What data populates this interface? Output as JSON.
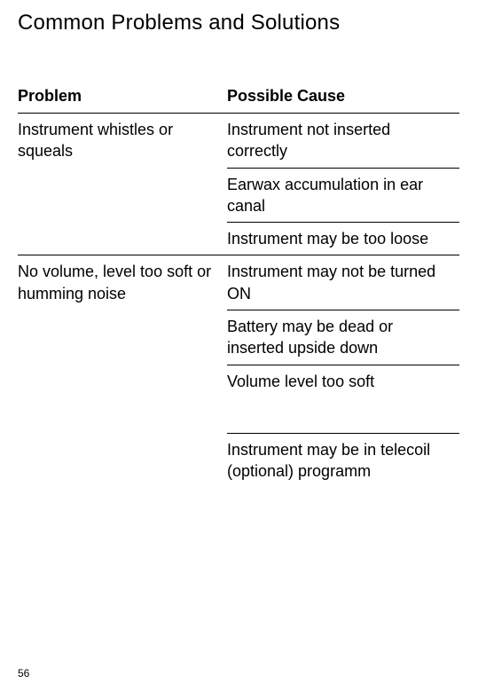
{
  "title": "Common Problems and Solutions",
  "headers": {
    "problem": "Problem",
    "cause": "Possible Cause"
  },
  "rows": [
    {
      "problem": "Instrument whistles or squeals",
      "causes": [
        "Instrument not inserted correctly",
        "Earwax accumulation in ear canal",
        "Instrument may be too loose"
      ]
    },
    {
      "problem": "No volume, level too soft or humming noise",
      "causes": [
        "Instrument may not be turned ON",
        "Battery may be dead or inserted upside down",
        "Volume level too soft",
        "Instrument may be in telecoil (optional) programm"
      ],
      "gap_after_index": 2
    }
  ],
  "page_number": "56",
  "colors": {
    "text": "#000000",
    "background": "#ffffff",
    "rule": "#000000"
  }
}
